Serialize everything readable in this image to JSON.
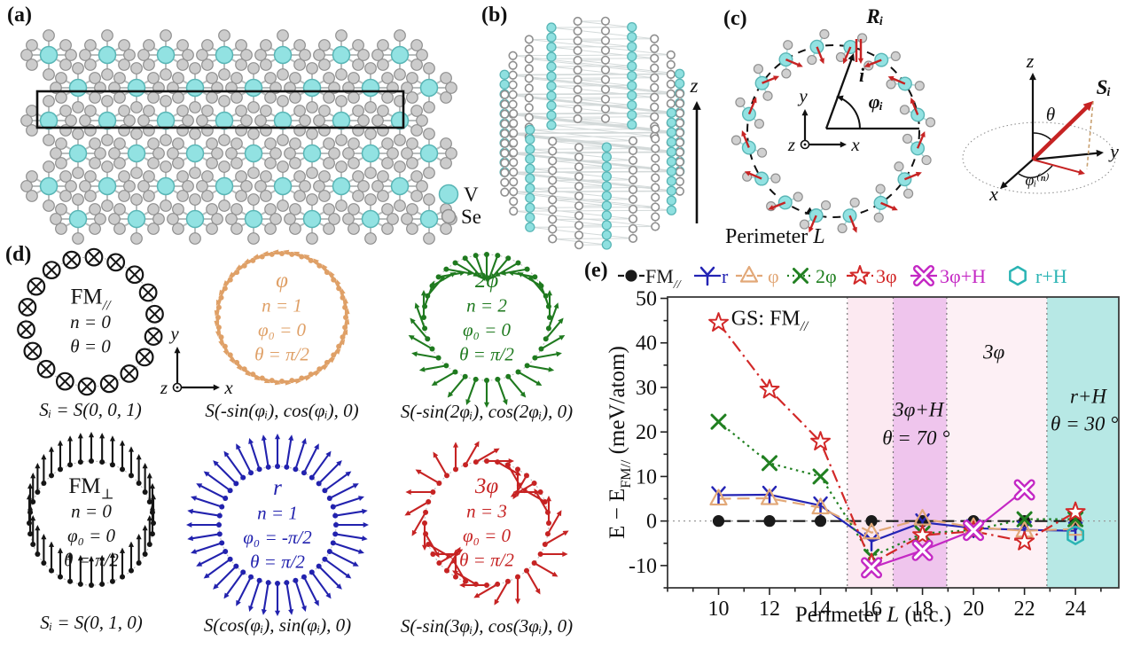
{
  "panels": {
    "a": "(a)",
    "b": "(b)",
    "c": "(c)",
    "d": "(d)",
    "e": "(e)"
  },
  "panel_a": {
    "atom_legend": [
      {
        "label": "V",
        "color": "#92e2e2",
        "stroke": "#59b6b6"
      },
      {
        "label": "Se",
        "color": "#cccccc",
        "stroke": "#8f8f8f"
      }
    ]
  },
  "panel_b": {
    "z_label": "z"
  },
  "panel_c": {
    "perimeter_parts": [
      {
        "t": "Perimeter "
      },
      {
        "t": "L",
        "it": true
      }
    ],
    "R_label": "Rᵢ",
    "i_label": "i",
    "phi_label": "φᵢ",
    "axes": {
      "x": "x",
      "y": "y",
      "z": "z"
    },
    "sphere": {
      "x": "x",
      "y": "y",
      "z": "z",
      "S": "Sᵢ",
      "theta": "θ",
      "phi": "φᵢ⁽ⁿ⁾"
    }
  },
  "panel_d": {
    "axes": {
      "x": "x",
      "y": "y",
      "z": "z"
    },
    "configs": [
      {
        "name_parts": [
          {
            "t": "FM"
          },
          {
            "t": "//",
            "sub": true,
            "it": true
          }
        ],
        "pattern": "into_page",
        "color": "#151515",
        "params": [
          "n = 0",
          "θ = 0"
        ],
        "formula": "Sᵢ = S(0, 0, 1)"
      },
      {
        "name_parts": [
          {
            "t": "φ",
            "it": true
          }
        ],
        "pattern": "tangent",
        "n": 1,
        "color": "#dfa067",
        "params": [
          "n = 1",
          "φ₀ = 0",
          "θ = π/2"
        ],
        "formula": "S(-sin(φᵢ), cos(φᵢ), 0)"
      },
      {
        "name_parts": [
          {
            "t": "2φ",
            "it": true
          }
        ],
        "pattern": "tangent",
        "n": 2,
        "color": "#1f7a1f",
        "params": [
          "n = 2",
          "φ₀ = 0",
          "θ = π/2"
        ],
        "formula": "S(-sin(2φᵢ), cos(2φᵢ), 0)"
      },
      {
        "name_parts": [
          {
            "t": "FM"
          },
          {
            "t": "⊥",
            "sub": true
          }
        ],
        "pattern": "uniform_up",
        "color": "#151515",
        "params": [
          "n = 0",
          "φ₀ = 0",
          "θ = π/2"
        ],
        "formula": "Sᵢ = S(0, 1, 0)"
      },
      {
        "name_parts": [
          {
            "t": "r",
            "it": true
          }
        ],
        "pattern": "radial",
        "color": "#2222ae",
        "params": [
          "n = 1",
          "φ₀ = -π/2",
          "θ = π/2"
        ],
        "formula": "S(cos(φᵢ), sin(φᵢ), 0)"
      },
      {
        "name_parts": [
          {
            "t": "3φ",
            "it": true
          }
        ],
        "pattern": "tangent",
        "n": 3,
        "color": "#c62323",
        "params": [
          "n = 3",
          "φ₀ = 0",
          "θ = π/2"
        ],
        "formula": "S(-sin(3φᵢ), cos(3φᵢ), 0)"
      }
    ]
  },
  "chart_data": {
    "type": "line",
    "xlabel": "Perimeter L (u.c.)",
    "ylabel": "E − E_FM// (meV/atom)",
    "xlabel_parts": [
      {
        "t": "Perimeter "
      },
      {
        "t": "L",
        "it": true
      },
      {
        "t": " (u.c.)"
      }
    ],
    "ylabel_parts": [
      {
        "t": "E − E"
      },
      {
        "t": "FM//",
        "sub": true
      },
      {
        "t": " (meV/atom)"
      }
    ],
    "xlim": [
      8,
      25.7
    ],
    "ylim": [
      -15,
      50.3
    ],
    "xticks": [
      10,
      12,
      14,
      16,
      18,
      20,
      22,
      24
    ],
    "yticks": [
      -10,
      0,
      10,
      20,
      30,
      40,
      50
    ],
    "grid": false,
    "legend_position": "top",
    "x": [
      10,
      12,
      14,
      16,
      18,
      20,
      22,
      24
    ],
    "series": [
      {
        "label_parts": [
          {
            "t": "FM"
          },
          {
            "t": "//",
            "sub": true,
            "it": true
          }
        ],
        "color": "#1a1a1a",
        "line": "dashed",
        "marker": "dot",
        "values": [
          0,
          0,
          0,
          0,
          0,
          0,
          0,
          0
        ]
      },
      {
        "label_parts": [
          {
            "t": "r"
          }
        ],
        "color": "#2424b4",
        "line": "solid",
        "marker": "Y",
        "values": [
          5.8,
          5.9,
          3.5,
          -4.6,
          -0.3,
          -1.6,
          -2.0,
          -2.2
        ]
      },
      {
        "label_parts": [
          {
            "t": "φ"
          }
        ],
        "color": "#e2a878",
        "line": "dashed",
        "marker": "triangle",
        "values": [
          5.0,
          5.1,
          3.0,
          -2.6,
          0.5,
          -1.4,
          -2.2,
          -1.8
        ]
      },
      {
        "label_parts": [
          {
            "t": "2φ"
          }
        ],
        "color": "#218021",
        "line": "dotted",
        "marker": "x",
        "values": [
          22.3,
          13.0,
          10.0,
          -8.0,
          -2.8,
          -2.0,
          0.4,
          0.4
        ]
      },
      {
        "label_parts": [
          {
            "t": "3φ"
          }
        ],
        "color": "#d22828",
        "line": "dashdot",
        "marker": "star",
        "values": [
          44.5,
          29.5,
          17.8,
          -9.5,
          -3.2,
          -2.3,
          -4.6,
          2.0
        ]
      },
      {
        "label_parts": [
          {
            "t": "3φ+H"
          }
        ],
        "color": "#c428c4",
        "line": "solid",
        "marker": "xcross",
        "values": [
          null,
          null,
          null,
          -10.5,
          -6.6,
          -2.1,
          7.0,
          null
        ]
      },
      {
        "label_parts": [
          {
            "t": "r+H"
          }
        ],
        "color": "#2ab4b4",
        "line": "none",
        "marker": "hexagon",
        "values": [
          null,
          null,
          null,
          null,
          null,
          null,
          null,
          -3.2
        ]
      }
    ],
    "regions": [
      {
        "from": 15.05,
        "to": 16.85,
        "color": "#fce9f1"
      },
      {
        "from": 16.85,
        "to": 18.95,
        "color": "#efc5ed"
      },
      {
        "from": 18.95,
        "to": 22.88,
        "color": "#fdf0f5"
      },
      {
        "from": 22.88,
        "to": 25.7,
        "color": "#b7e8e5"
      }
    ],
    "boundaries": [
      15.05,
      16.85,
      18.95,
      22.88
    ],
    "zero_line": 0,
    "annotations": [
      {
        "parts": [
          {
            "t": "GS: FM"
          },
          {
            "t": "//",
            "sub": true,
            "it": true
          }
        ],
        "x": 12.0,
        "y": 44.0,
        "size": 24,
        "it": false
      },
      {
        "parts": [
          {
            "t": "3φ+H",
            "it": true
          }
        ],
        "x": 17.85,
        "y": 23.5,
        "size": 23
      },
      {
        "parts": [
          {
            "t": "θ = 70 °",
            "it": true
          }
        ],
        "x": 17.75,
        "y": 17.2,
        "size": 23
      },
      {
        "parts": [
          {
            "t": "3φ",
            "it": true
          }
        ],
        "x": 20.8,
        "y": 36.5,
        "size": 23
      },
      {
        "parts": [
          {
            "t": "r+H",
            "it": true
          }
        ],
        "x": 24.5,
        "y": 26.5,
        "size": 23
      },
      {
        "parts": [
          {
            "t": "θ = 30 °",
            "it": true
          }
        ],
        "x": 24.35,
        "y": 20.3,
        "size": 23
      }
    ]
  }
}
